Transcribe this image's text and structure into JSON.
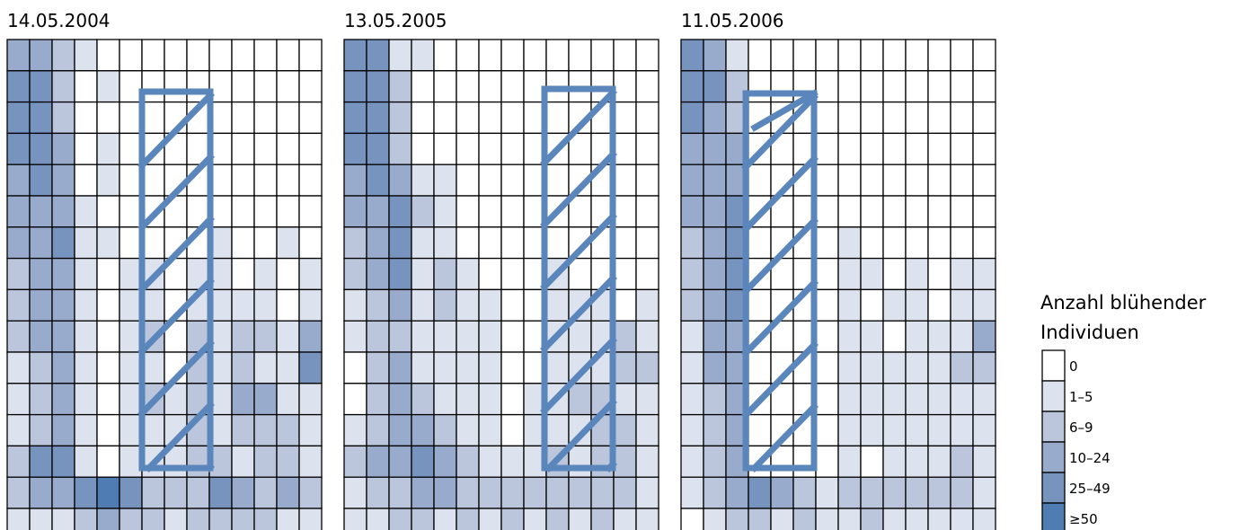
{
  "chart_data": {
    "type": "heatmap",
    "title": "",
    "legend": {
      "title_lines": [
        "Anzahl blühender",
        "Individuen"
      ],
      "placement": "right",
      "classes": [
        {
          "label": "0",
          "color": "#ffffff"
        },
        {
          "label": "1–5",
          "color": "#dde3ee"
        },
        {
          "label": "6–9",
          "color": "#bbc6dd"
        },
        {
          "label": "10–24",
          "color": "#99abcc"
        },
        {
          "label": "25–49",
          "color": "#7794bf"
        },
        {
          "label": "≥50",
          "color": "#4f7db3"
        }
      ]
    },
    "overlay_color": "#5b86bb",
    "panels": [
      {
        "date": "14.05.2004",
        "grid": [
          [
            3,
            3,
            2,
            1,
            0,
            0,
            0,
            0,
            0,
            0,
            0,
            0,
            0,
            0
          ],
          [
            4,
            4,
            2,
            0,
            1,
            0,
            0,
            0,
            0,
            0,
            0,
            0,
            0,
            0
          ],
          [
            4,
            4,
            2,
            0,
            0,
            0,
            0,
            0,
            0,
            0,
            0,
            0,
            0,
            0
          ],
          [
            4,
            4,
            3,
            0,
            1,
            0,
            0,
            0,
            0,
            0,
            0,
            0,
            0,
            0
          ],
          [
            3,
            4,
            3,
            0,
            1,
            0,
            0,
            0,
            0,
            0,
            0,
            0,
            0,
            0
          ],
          [
            3,
            3,
            3,
            1,
            0,
            0,
            0,
            0,
            0,
            0,
            0,
            0,
            0,
            0
          ],
          [
            3,
            3,
            4,
            1,
            1,
            0,
            0,
            0,
            0,
            1,
            0,
            0,
            1,
            0
          ],
          [
            2,
            3,
            3,
            1,
            0,
            1,
            1,
            0,
            1,
            1,
            0,
            1,
            0,
            1
          ],
          [
            2,
            3,
            3,
            1,
            0,
            1,
            1,
            0,
            1,
            1,
            1,
            1,
            0,
            1
          ],
          [
            2,
            3,
            3,
            1,
            0,
            1,
            2,
            0,
            2,
            1,
            2,
            2,
            1,
            3
          ],
          [
            1,
            2,
            3,
            1,
            0,
            1,
            1,
            0,
            2,
            1,
            2,
            1,
            1,
            4
          ],
          [
            1,
            2,
            3,
            1,
            0,
            1,
            2,
            1,
            2,
            1,
            3,
            3,
            1,
            1
          ],
          [
            1,
            2,
            3,
            1,
            0,
            1,
            1,
            1,
            2,
            1,
            2,
            2,
            2,
            1
          ],
          [
            2,
            4,
            4,
            1,
            0,
            1,
            1,
            1,
            2,
            2,
            1,
            2,
            2,
            1
          ],
          [
            2,
            3,
            3,
            4,
            5,
            4,
            2,
            2,
            2,
            4,
            3,
            2,
            3,
            2
          ],
          [
            1,
            1,
            1,
            2,
            3,
            2,
            2,
            1,
            2,
            2,
            2,
            2,
            1,
            1
          ]
        ]
      },
      {
        "date": "13.05.2005",
        "grid": [
          [
            4,
            4,
            1,
            1,
            0,
            0,
            0,
            0,
            0,
            0,
            0,
            0,
            0,
            0
          ],
          [
            4,
            4,
            2,
            0,
            0,
            0,
            0,
            0,
            0,
            0,
            0,
            0,
            0,
            0
          ],
          [
            4,
            4,
            2,
            0,
            0,
            0,
            0,
            0,
            0,
            0,
            0,
            0,
            0,
            0
          ],
          [
            4,
            4,
            2,
            0,
            0,
            0,
            0,
            0,
            0,
            0,
            0,
            0,
            0,
            0
          ],
          [
            3,
            4,
            3,
            1,
            1,
            0,
            0,
            0,
            0,
            0,
            0,
            0,
            0,
            0
          ],
          [
            3,
            3,
            4,
            2,
            1,
            0,
            0,
            0,
            0,
            0,
            0,
            0,
            0,
            0
          ],
          [
            2,
            3,
            4,
            1,
            1,
            0,
            0,
            0,
            0,
            0,
            0,
            0,
            0,
            0
          ],
          [
            2,
            3,
            4,
            1,
            2,
            1,
            0,
            0,
            0,
            1,
            0,
            0,
            0,
            0
          ],
          [
            1,
            2,
            3,
            1,
            2,
            1,
            1,
            0,
            0,
            1,
            1,
            1,
            0,
            1
          ],
          [
            1,
            2,
            2,
            1,
            1,
            1,
            1,
            0,
            0,
            1,
            1,
            1,
            2,
            1
          ],
          [
            0,
            2,
            3,
            1,
            1,
            1,
            1,
            0,
            0,
            1,
            1,
            1,
            2,
            2
          ],
          [
            0,
            2,
            3,
            2,
            1,
            1,
            1,
            0,
            1,
            1,
            2,
            2,
            1,
            1
          ],
          [
            1,
            2,
            3,
            3,
            2,
            1,
            1,
            0,
            1,
            1,
            1,
            2,
            2,
            1
          ],
          [
            2,
            3,
            3,
            4,
            3,
            2,
            1,
            1,
            1,
            2,
            1,
            2,
            2,
            1
          ],
          [
            1,
            2,
            2,
            3,
            3,
            2,
            2,
            2,
            2,
            2,
            2,
            2,
            2,
            1
          ],
          [
            1,
            1,
            2,
            2,
            1,
            2,
            1,
            2,
            1,
            2,
            1,
            2,
            1,
            1
          ]
        ]
      },
      {
        "date": "11.05.2006",
        "grid": [
          [
            4,
            3,
            1,
            0,
            0,
            0,
            0,
            0,
            0,
            0,
            0,
            0,
            0,
            0
          ],
          [
            4,
            4,
            2,
            0,
            0,
            0,
            0,
            0,
            0,
            0,
            0,
            0,
            0,
            0
          ],
          [
            4,
            3,
            2,
            0,
            0,
            0,
            0,
            0,
            0,
            0,
            0,
            0,
            0,
            0
          ],
          [
            3,
            3,
            3,
            0,
            0,
            0,
            0,
            0,
            0,
            0,
            0,
            0,
            0,
            0
          ],
          [
            3,
            3,
            3,
            0,
            0,
            0,
            0,
            0,
            0,
            0,
            0,
            0,
            0,
            0
          ],
          [
            3,
            3,
            4,
            0,
            0,
            0,
            0,
            0,
            0,
            0,
            0,
            0,
            0,
            0
          ],
          [
            2,
            3,
            4,
            0,
            0,
            0,
            0,
            1,
            0,
            0,
            0,
            0,
            0,
            0
          ],
          [
            2,
            3,
            4,
            0,
            0,
            0,
            0,
            1,
            1,
            0,
            1,
            0,
            1,
            1
          ],
          [
            2,
            3,
            4,
            0,
            0,
            0,
            0,
            1,
            0,
            1,
            1,
            0,
            1,
            1
          ],
          [
            1,
            3,
            3,
            0,
            0,
            0,
            0,
            1,
            1,
            0,
            1,
            1,
            1,
            3
          ],
          [
            1,
            3,
            3,
            0,
            0,
            0,
            0,
            1,
            1,
            1,
            1,
            1,
            2,
            2
          ],
          [
            1,
            2,
            3,
            0,
            0,
            0,
            0,
            1,
            1,
            1,
            1,
            1,
            1,
            1
          ],
          [
            1,
            2,
            3,
            0,
            0,
            0,
            0,
            1,
            1,
            1,
            1,
            1,
            1,
            1
          ],
          [
            1,
            2,
            3,
            0,
            0,
            0,
            0,
            1,
            0,
            1,
            1,
            1,
            2,
            1
          ],
          [
            1,
            2,
            3,
            4,
            3,
            2,
            1,
            2,
            2,
            2,
            2,
            2,
            2,
            1
          ],
          [
            0,
            1,
            2,
            2,
            1,
            2,
            1,
            1,
            2,
            1,
            1,
            1,
            1,
            1
          ]
        ]
      }
    ]
  }
}
